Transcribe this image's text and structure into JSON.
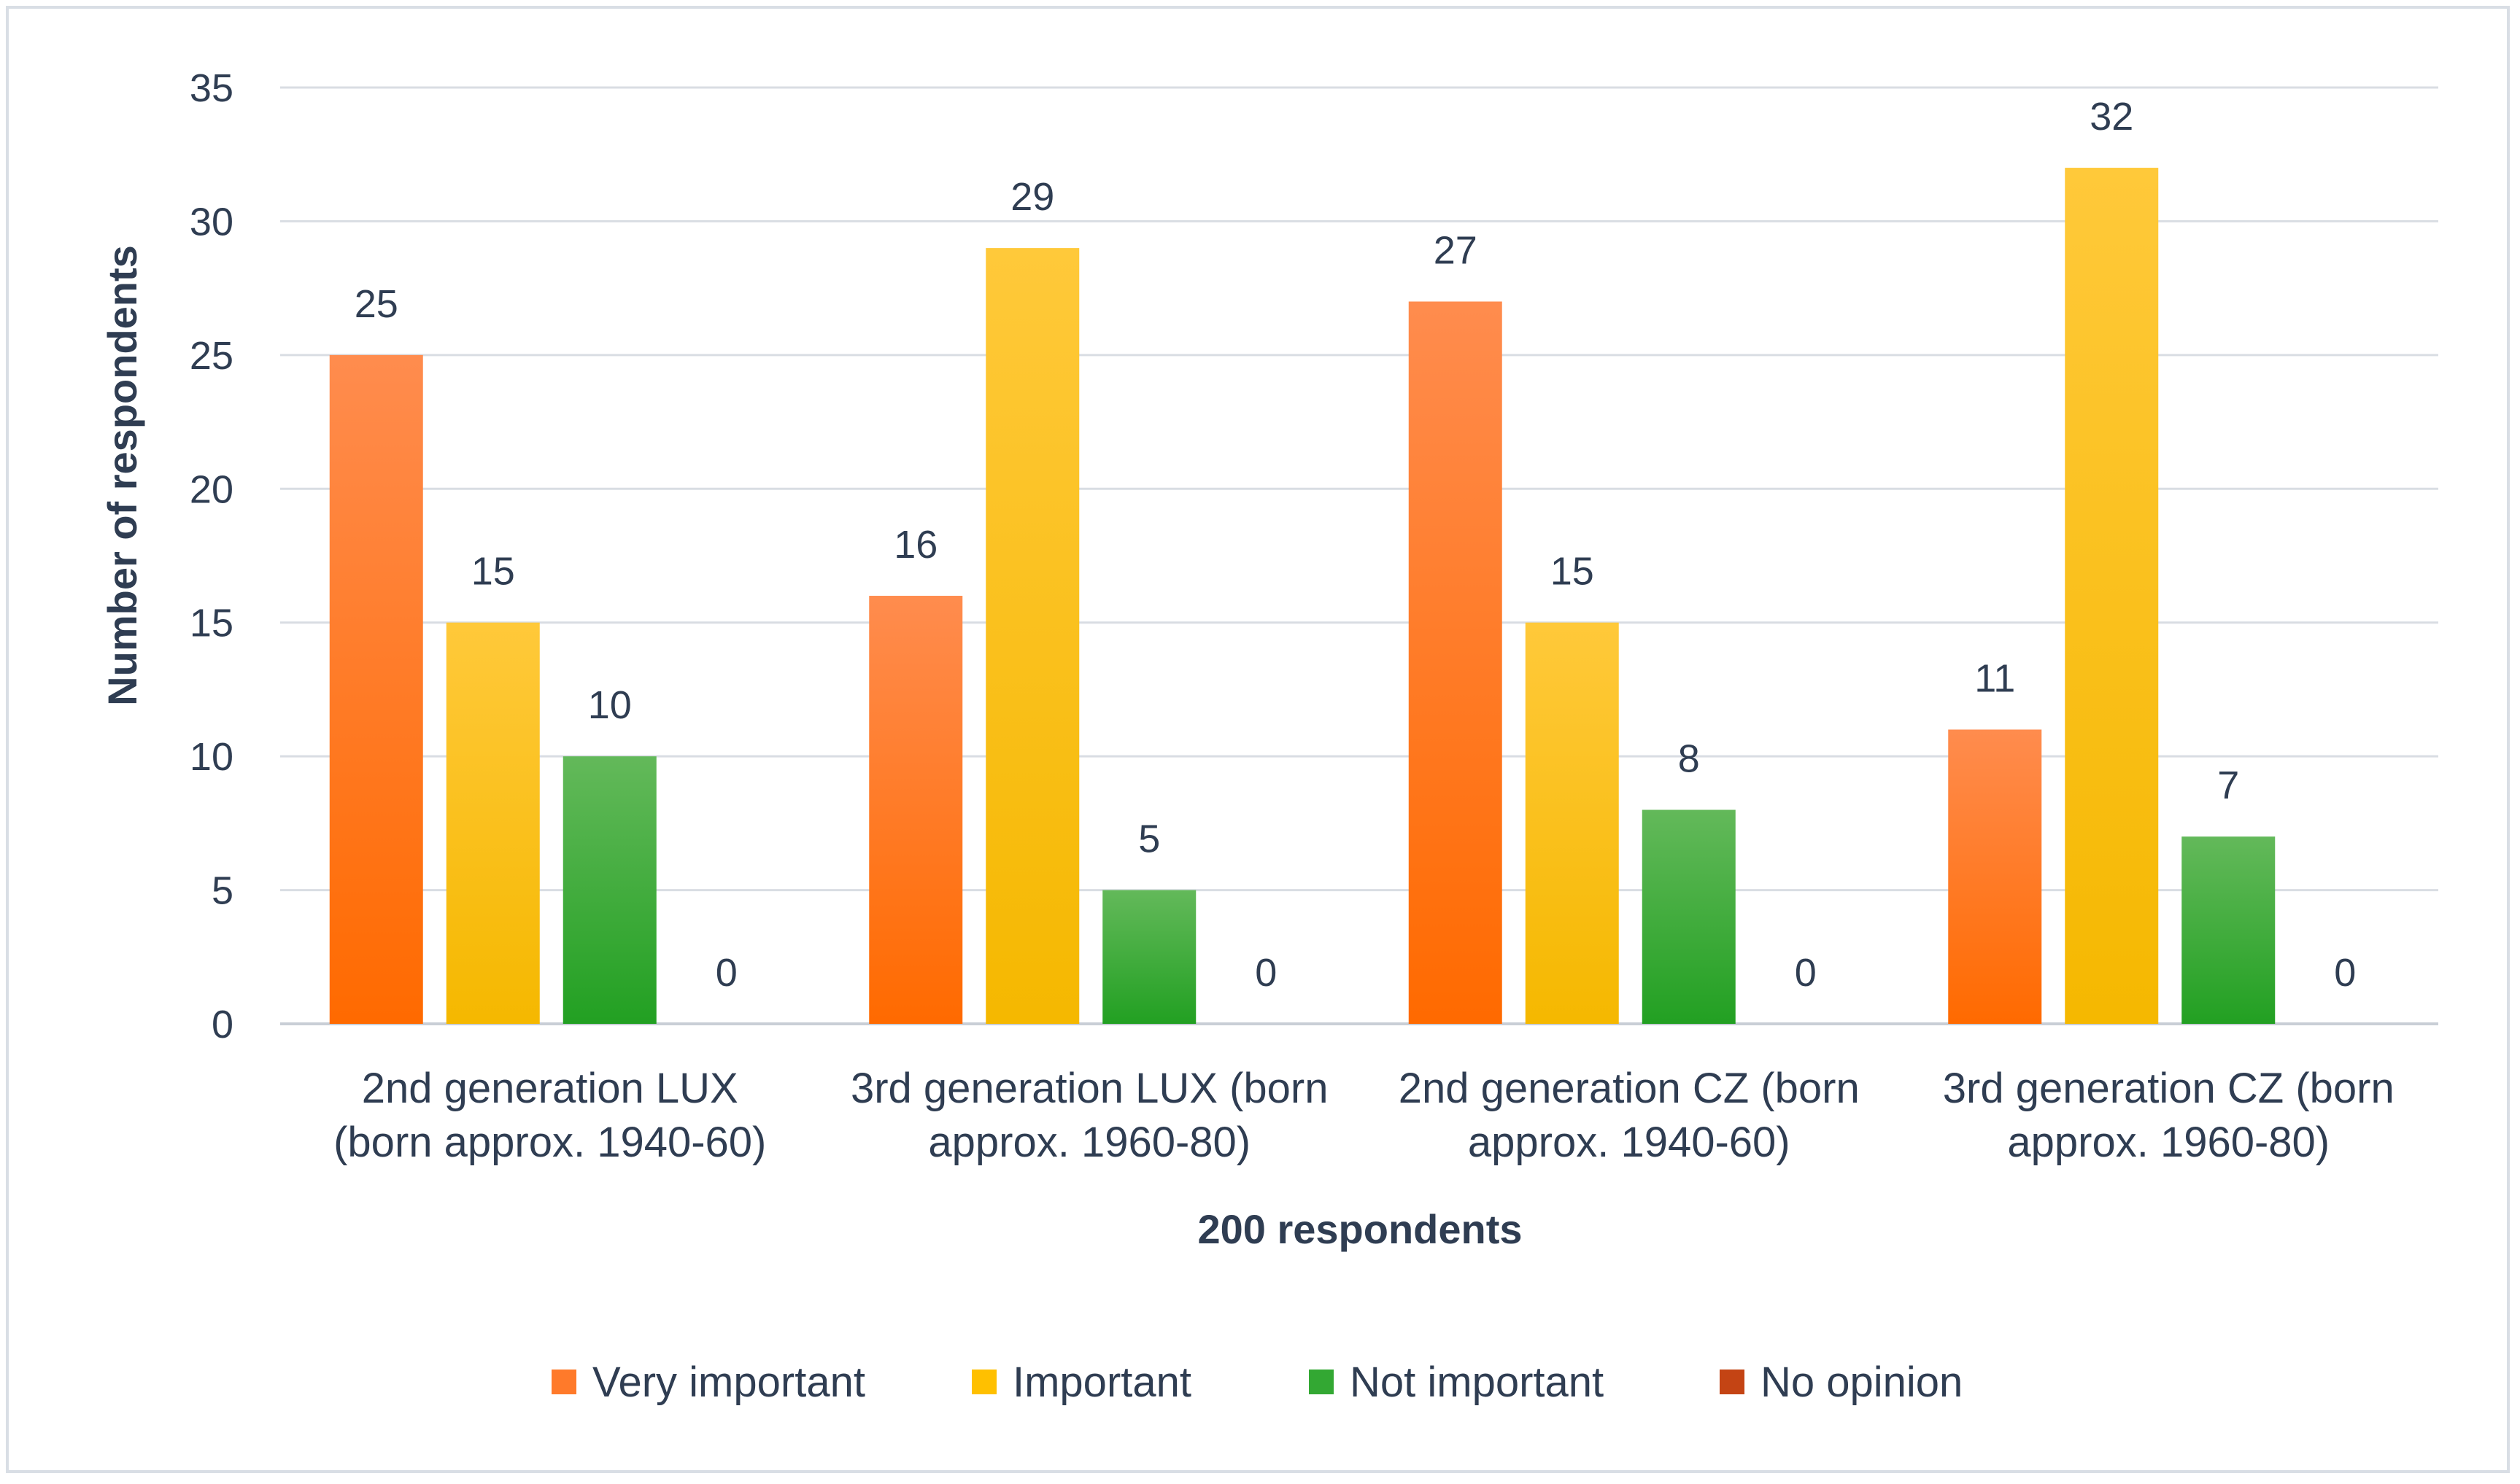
{
  "chart_data": {
    "type": "bar",
    "title": "",
    "xlabel": "200 respondents",
    "ylabel": "Number of respondents",
    "ylim": [
      0,
      35
    ],
    "yticks": [
      0,
      5,
      10,
      15,
      20,
      25,
      30,
      35
    ],
    "grid": true,
    "legend_position": "bottom",
    "categories": [
      [
        "2nd generation LUX",
        "(born approx. 1940-60)"
      ],
      [
        "3rd generation LUX (born",
        "approx. 1960-80)"
      ],
      [
        "2nd generation CZ (born",
        "approx. 1940-60)"
      ],
      [
        "3rd generation CZ (born",
        "approx. 1960-80)"
      ]
    ],
    "series": [
      {
        "name": "Very important",
        "values": [
          25,
          16,
          27,
          11
        ],
        "color_top": "#ff8c4e",
        "color_bottom": "#ff6a00",
        "legend_color": "#ff7a2a"
      },
      {
        "name": "Important",
        "values": [
          15,
          29,
          15,
          32
        ],
        "color_top": "#ffc93a",
        "color_bottom": "#f5b800",
        "legend_color": "#ffc000"
      },
      {
        "name": "Not important",
        "values": [
          10,
          5,
          8,
          7
        ],
        "color_top": "#63b95a",
        "color_bottom": "#22a022",
        "legend_color": "#33a833"
      },
      {
        "name": "No opinion",
        "values": [
          0,
          0,
          0,
          0
        ],
        "color_top": "#d0501a",
        "color_bottom": "#b83a10",
        "legend_color": "#c44414"
      }
    ]
  }
}
